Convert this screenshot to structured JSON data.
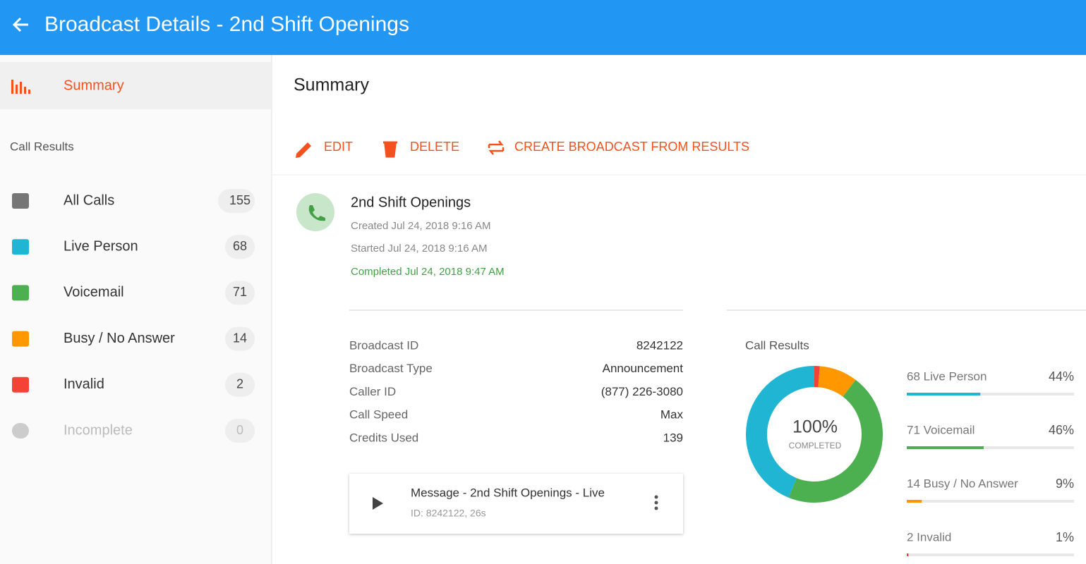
{
  "header": {
    "title": "Broadcast Details - 2nd Shift Openings"
  },
  "sidebar": {
    "summary": "Summary",
    "section": "Call Results",
    "items": [
      {
        "label": "All Calls",
        "count": 155
      },
      {
        "label": "Live Person",
        "count": 68
      },
      {
        "label": "Voicemail",
        "count": 71
      },
      {
        "label": "Busy / No Answer",
        "count": 14
      },
      {
        "label": "Invalid",
        "count": 2
      },
      {
        "label": "Incomplete",
        "count": 0
      }
    ]
  },
  "main": {
    "title": "Summary",
    "actions": [
      "EDIT",
      "DELETE",
      "CREATE BROADCAST FROM RESULTS"
    ],
    "broadcast": {
      "name": "2nd Shift Openings",
      "created": "Created Jul 24, 2018 9:16 AM",
      "started": "Started Jul 24, 2018 9:16 AM",
      "completed": "Completed Jul 24, 2018 9:47 AM"
    },
    "details": [
      [
        "Broadcast ID",
        "8242122"
      ],
      [
        "Broadcast Type",
        "Announcement"
      ],
      [
        "Caller ID",
        "(877) 226-3080"
      ],
      [
        "Call Speed",
        "Max"
      ],
      [
        "Credits Used",
        139
      ]
    ],
    "message": {
      "title": "Message - 2nd Shift Openings - Live",
      "meta": "ID: 8242122, 26s"
    },
    "call_results": {
      "title": "Call Results",
      "center_value": "100%",
      "center_label": "COMPLETED",
      "items": [
        {
          "label": "68 Live Person",
          "percent": 44,
          "percent_label": "44%",
          "color": "#1fb5d3"
        },
        {
          "label": "71 Voicemail",
          "percent": 46,
          "percent_label": "46%",
          "color": "#4caf50"
        },
        {
          "label": "14 Busy / No Answer",
          "percent": 9,
          "percent_label": "9%",
          "color": "#ff9800"
        },
        {
          "label": "2 Invalid",
          "percent": 1,
          "percent_label": "1%",
          "color": "#f44336"
        }
      ]
    }
  }
}
